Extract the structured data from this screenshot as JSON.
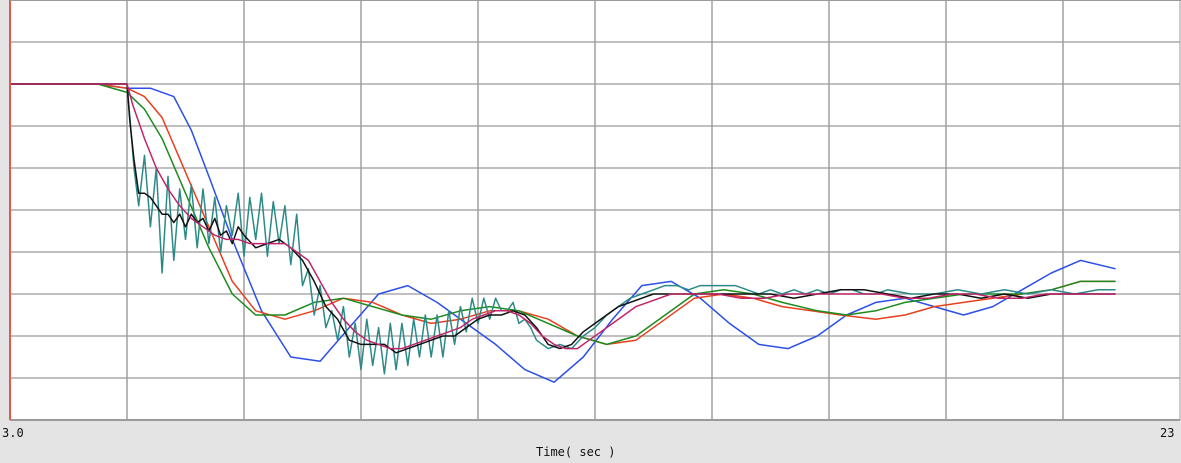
{
  "chart_data": {
    "type": "line",
    "title": "",
    "xlabel": "Time( sec )",
    "ylabel": "",
    "x_start_label": "3.0",
    "x_end_label": "23",
    "xlim": [
      3.0,
      23.0
    ],
    "ylim": [
      0,
      10
    ],
    "grid": true,
    "legend": "none",
    "series": [
      {
        "color": "#2b4fe8",
        "x": [
          3.0,
          4.5,
          5.0,
          5.4,
          5.8,
          6.1,
          6.4,
          6.8,
          7.3,
          7.8,
          8.3,
          8.8,
          9.3,
          9.8,
          10.3,
          10.8,
          11.3,
          11.8,
          12.3,
          12.8,
          13.3,
          13.8,
          14.3,
          14.8,
          15.3,
          15.8,
          16.3,
          16.8,
          17.3,
          17.8,
          18.3,
          18.8,
          19.3,
          19.8,
          20.3,
          20.8,
          21.3,
          21.9
        ],
        "y": [
          8.0,
          8.0,
          7.9,
          7.9,
          7.7,
          6.9,
          5.8,
          4.3,
          2.6,
          1.5,
          1.4,
          2.2,
          3.0,
          3.2,
          2.8,
          2.3,
          1.8,
          1.2,
          0.9,
          1.5,
          2.4,
          3.2,
          3.3,
          2.9,
          2.3,
          1.8,
          1.7,
          2.0,
          2.5,
          2.8,
          2.9,
          2.7,
          2.5,
          2.7,
          3.1,
          3.5,
          3.8,
          3.6
        ]
      },
      {
        "color": "#e8401f",
        "x": [
          3.0,
          4.5,
          5.0,
          5.3,
          5.6,
          6.0,
          6.4,
          6.8,
          7.2,
          7.7,
          8.2,
          8.7,
          9.2,
          9.7,
          10.2,
          10.7,
          11.2,
          11.7,
          12.2,
          12.7,
          13.2,
          13.7,
          14.2,
          14.7,
          15.2,
          15.7,
          16.2,
          16.7,
          17.2,
          17.8,
          18.3,
          18.8,
          19.3,
          19.8,
          20.3,
          20.8,
          21.3,
          21.9
        ],
        "y": [
          8.0,
          8.0,
          7.9,
          7.7,
          7.2,
          5.9,
          4.6,
          3.3,
          2.6,
          2.4,
          2.6,
          2.9,
          2.8,
          2.5,
          2.3,
          2.4,
          2.6,
          2.6,
          2.4,
          2.0,
          1.8,
          1.9,
          2.4,
          2.9,
          3.0,
          2.9,
          2.7,
          2.6,
          2.5,
          2.4,
          2.5,
          2.7,
          2.8,
          2.9,
          3.0,
          3.1,
          3.3,
          3.3
        ]
      },
      {
        "color": "#1d8a1d",
        "x": [
          3.0,
          4.5,
          5.0,
          5.3,
          5.6,
          6.0,
          6.4,
          6.8,
          7.2,
          7.7,
          8.2,
          8.7,
          9.2,
          9.7,
          10.2,
          10.7,
          11.2,
          11.7,
          12.2,
          12.7,
          13.2,
          13.7,
          14.2,
          14.7,
          15.2,
          15.7,
          16.2,
          16.8,
          17.3,
          17.8,
          18.3,
          18.8,
          19.3,
          19.8,
          20.3,
          20.8,
          21.3,
          21.9
        ],
        "y": [
          8.0,
          8.0,
          7.8,
          7.4,
          6.7,
          5.4,
          4.1,
          3.0,
          2.5,
          2.5,
          2.8,
          2.9,
          2.7,
          2.5,
          2.4,
          2.6,
          2.7,
          2.6,
          2.3,
          2.0,
          1.8,
          2.0,
          2.5,
          3.0,
          3.1,
          3.0,
          2.8,
          2.6,
          2.5,
          2.6,
          2.8,
          2.9,
          3.0,
          3.0,
          3.0,
          3.1,
          3.3,
          3.3
        ]
      },
      {
        "color": "#2b8a88",
        "x": [
          3.0,
          5.0,
          5.05,
          5.12,
          5.2,
          5.3,
          5.4,
          5.5,
          5.6,
          5.7,
          5.8,
          5.9,
          6.0,
          6.1,
          6.2,
          6.3,
          6.4,
          6.5,
          6.6,
          6.7,
          6.8,
          6.9,
          7.0,
          7.1,
          7.2,
          7.3,
          7.4,
          7.5,
          7.6,
          7.7,
          7.8,
          7.9,
          8.0,
          8.1,
          8.2,
          8.3,
          8.4,
          8.5,
          8.6,
          8.7,
          8.8,
          8.9,
          9.0,
          9.1,
          9.2,
          9.3,
          9.4,
          9.5,
          9.6,
          9.7,
          9.8,
          9.9,
          10.0,
          10.1,
          10.2,
          10.3,
          10.4,
          10.5,
          10.6,
          10.7,
          10.8,
          10.9,
          11.0,
          11.1,
          11.2,
          11.3,
          11.4,
          11.5,
          11.6,
          11.7,
          11.8,
          11.9,
          12.0,
          12.2,
          12.4,
          12.6,
          12.8,
          13.0,
          13.2,
          13.4,
          13.6,
          13.8,
          14.0,
          14.2,
          14.4,
          14.6,
          14.8,
          15.0,
          15.2,
          15.4,
          15.6,
          15.8,
          16.0,
          16.2,
          16.4,
          16.6,
          16.8,
          17.0,
          17.2,
          17.4,
          17.6,
          17.8,
          18.0,
          18.4,
          18.8,
          19.2,
          19.6,
          20.0,
          20.4,
          20.8,
          21.2,
          21.6,
          21.9
        ],
        "y": [
          8.0,
          8.0,
          7.2,
          6.0,
          5.1,
          6.3,
          4.6,
          6.0,
          3.5,
          5.8,
          3.8,
          5.5,
          4.3,
          5.6,
          4.1,
          5.5,
          4.2,
          5.3,
          4.0,
          5.1,
          4.4,
          5.4,
          3.9,
          5.3,
          4.3,
          5.4,
          3.9,
          5.2,
          4.2,
          5.1,
          3.7,
          4.9,
          3.2,
          3.6,
          2.5,
          3.2,
          2.2,
          2.6,
          1.9,
          2.7,
          1.5,
          2.3,
          1.2,
          2.4,
          1.3,
          2.2,
          1.1,
          2.3,
          1.2,
          2.3,
          1.3,
          2.4,
          1.5,
          2.5,
          1.5,
          2.5,
          1.5,
          2.6,
          1.8,
          2.7,
          2.1,
          2.9,
          2.3,
          2.9,
          2.4,
          2.9,
          2.6,
          2.6,
          2.8,
          2.3,
          2.4,
          2.2,
          1.9,
          1.7,
          1.8,
          1.7,
          2.0,
          2.2,
          2.5,
          2.7,
          2.9,
          3.0,
          3.1,
          3.2,
          3.2,
          3.1,
          3.2,
          3.2,
          3.2,
          3.2,
          3.1,
          3.0,
          3.1,
          3.0,
          3.1,
          3.0,
          3.1,
          3.0,
          3.1,
          3.1,
          3.0,
          3.0,
          3.1,
          3.0,
          3.0,
          3.1,
          3.0,
          3.1,
          3.0,
          3.1,
          3.0,
          3.1,
          3.1
        ]
      },
      {
        "color": "#111111",
        "x": [
          3.0,
          5.0,
          5.05,
          5.12,
          5.2,
          5.3,
          5.4,
          5.5,
          5.6,
          5.7,
          5.8,
          5.9,
          6.0,
          6.1,
          6.2,
          6.3,
          6.4,
          6.5,
          6.6,
          6.7,
          6.8,
          6.9,
          7.0,
          7.2,
          7.4,
          7.6,
          7.8,
          8.0,
          8.2,
          8.4,
          8.6,
          8.8,
          9.0,
          9.2,
          9.4,
          9.6,
          9.8,
          10.0,
          10.2,
          10.4,
          10.6,
          10.8,
          11.0,
          11.2,
          11.4,
          11.6,
          11.8,
          12.0,
          12.2,
          12.4,
          12.6,
          12.8,
          13.0,
          13.2,
          13.4,
          13.6,
          13.8,
          14.0,
          14.4,
          14.8,
          15.2,
          15.6,
          16.0,
          16.4,
          16.8,
          17.2,
          17.6,
          18.0,
          18.4,
          18.8,
          19.2,
          19.6,
          20.0,
          20.4,
          20.8,
          21.2,
          21.6,
          21.9
        ],
        "y": [
          8.0,
          8.0,
          7.1,
          6.2,
          5.4,
          5.4,
          5.3,
          5.1,
          4.9,
          4.9,
          4.7,
          4.9,
          4.6,
          4.9,
          4.7,
          4.8,
          4.5,
          4.8,
          4.4,
          4.5,
          4.2,
          4.6,
          4.4,
          4.1,
          4.2,
          4.3,
          4.1,
          3.8,
          3.3,
          2.7,
          2.4,
          1.9,
          1.8,
          1.8,
          1.8,
          1.6,
          1.7,
          1.8,
          1.9,
          2.0,
          2.0,
          2.2,
          2.4,
          2.5,
          2.5,
          2.6,
          2.5,
          2.2,
          1.8,
          1.7,
          1.8,
          2.1,
          2.3,
          2.5,
          2.7,
          2.8,
          2.9,
          3.0,
          3.0,
          3.0,
          3.0,
          3.0,
          3.0,
          2.9,
          3.0,
          3.1,
          3.1,
          3.0,
          2.9,
          3.0,
          3.0,
          2.9,
          3.0,
          2.9,
          3.0,
          3.0,
          3.0,
          3.0
        ]
      },
      {
        "color": "#c0256a",
        "x": [
          3.0,
          5.0,
          5.1,
          5.3,
          5.5,
          5.7,
          5.9,
          6.1,
          6.3,
          6.5,
          6.7,
          6.9,
          7.1,
          7.3,
          7.5,
          7.7,
          7.9,
          8.1,
          8.3,
          8.5,
          8.7,
          8.9,
          9.1,
          9.3,
          9.5,
          9.7,
          9.9,
          10.1,
          10.3,
          10.5,
          10.7,
          10.9,
          11.1,
          11.3,
          11.5,
          11.7,
          11.9,
          12.1,
          12.3,
          12.5,
          12.7,
          12.9,
          13.1,
          13.3,
          13.5,
          13.7,
          13.9,
          14.3,
          14.7,
          15.1,
          15.5,
          15.9,
          16.3,
          16.7,
          17.1,
          17.5,
          17.9,
          18.3,
          18.7,
          19.1,
          19.5,
          19.9,
          20.3,
          20.7,
          21.1,
          21.5,
          21.9
        ],
        "y": [
          8.0,
          8.0,
          7.5,
          6.7,
          6.0,
          5.5,
          5.1,
          4.8,
          4.6,
          4.4,
          4.3,
          4.3,
          4.2,
          4.2,
          4.2,
          4.2,
          4.0,
          3.8,
          3.3,
          2.8,
          2.4,
          2.1,
          1.9,
          1.8,
          1.7,
          1.7,
          1.8,
          1.9,
          2.0,
          2.1,
          2.2,
          2.4,
          2.5,
          2.6,
          2.6,
          2.5,
          2.3,
          2.0,
          1.8,
          1.7,
          1.7,
          1.9,
          2.1,
          2.3,
          2.5,
          2.7,
          2.8,
          3.0,
          3.0,
          3.0,
          2.9,
          2.9,
          3.0,
          3.0,
          3.0,
          3.0,
          3.0,
          2.9,
          2.9,
          3.0,
          3.0,
          2.9,
          2.9,
          3.0,
          3.0,
          3.0,
          3.0
        ]
      }
    ]
  },
  "colors": {
    "background": "#ffffff",
    "frame_bottom": "#e4e4e4",
    "grid": "#9a9a9a",
    "border": "#e25a4a"
  }
}
